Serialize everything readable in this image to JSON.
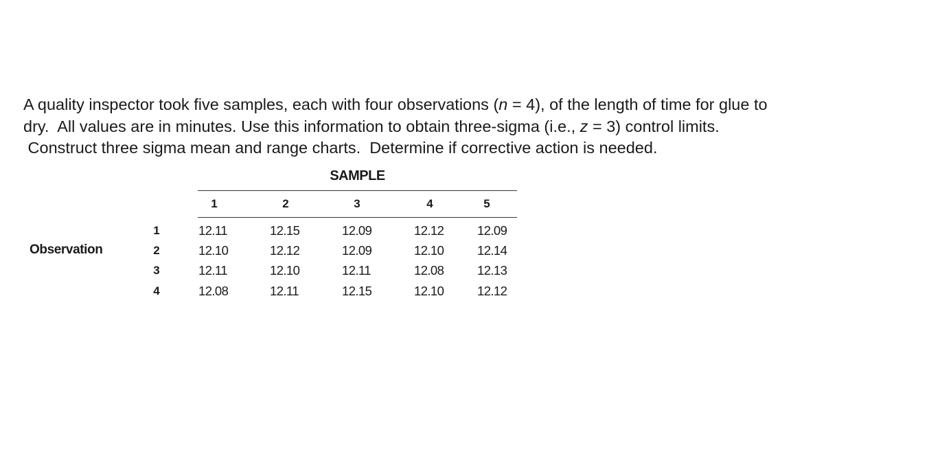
{
  "problem": {
    "line1_a": "A quality inspector took five samples, each with four observations (",
    "line1_n": "n",
    "line1_b": " = 4), of the length of time for glue to",
    "line2_a": "dry.  All values are in minutes. Use this information to obtain three-sigma (i.e., ",
    "line2_z": "z",
    "line2_b": " = 3) control limits.",
    "line3": " Construct three sigma mean and range charts.  Determine if corrective action is needed."
  },
  "table": {
    "sample_heading": "SAMPLE",
    "observation_label": "Observation",
    "columns": [
      "1",
      "2",
      "3",
      "4",
      "5"
    ],
    "rows": [
      {
        "obs": "1",
        "values": [
          "12.11",
          "12.15",
          "12.09",
          "12.12",
          "12.09"
        ]
      },
      {
        "obs": "2",
        "values": [
          "12.10",
          "12.12",
          "12.09",
          "12.10",
          "12.14"
        ]
      },
      {
        "obs": "3",
        "values": [
          "12.11",
          "12.10",
          "12.11",
          "12.08",
          "12.13"
        ]
      },
      {
        "obs": "4",
        "values": [
          "12.08",
          "12.11",
          "12.15",
          "12.10",
          "12.12"
        ]
      }
    ]
  }
}
